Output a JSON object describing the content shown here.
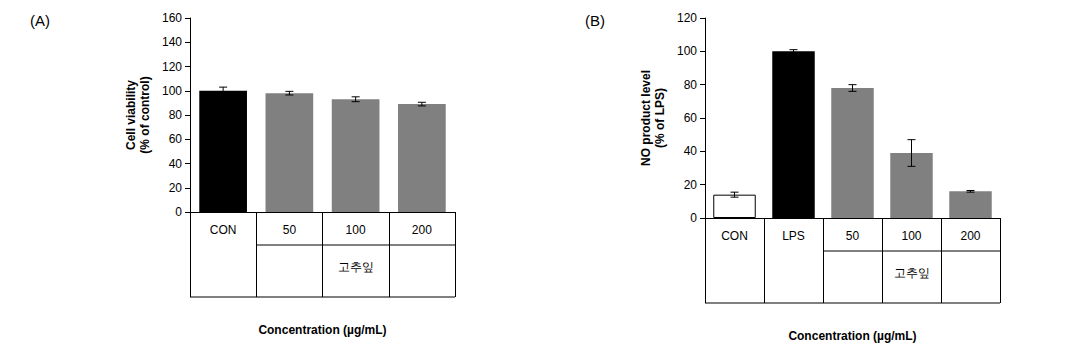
{
  "chart_data": [
    {
      "type": "bar",
      "title": "(A)",
      "y_label": "Cell viability\n(% of control)",
      "x_label": "Concentration (µg/mL)",
      "categories": [
        "CON",
        "50",
        "100",
        "200"
      ],
      "values": [
        100,
        98,
        93,
        89
      ],
      "errors": [
        3,
        1.5,
        2,
        1.5
      ],
      "colors": [
        "#000000",
        "#808080",
        "#808080",
        "#808080"
      ],
      "annotations": [
        {
          "text": "고추잎",
          "categories": [
            "50",
            "100",
            "200"
          ]
        }
      ],
      "ylim": [
        0,
        160
      ],
      "yticks": [
        0,
        20,
        40,
        60,
        80,
        100,
        120,
        140,
        160
      ],
      "grid": false
    },
    {
      "type": "bar",
      "title": "(B)",
      "y_label": "NO product level\n(% of LPS)",
      "x_label": "Concentration (µg/mL)",
      "categories": [
        "CON",
        "LPS",
        "50",
        "100",
        "200"
      ],
      "values": [
        14,
        100,
        78,
        39,
        16
      ],
      "errors": [
        1.5,
        1,
        2,
        8,
        0.5
      ],
      "colors": [
        "#ffffff",
        "#000000",
        "#808080",
        "#808080",
        "#808080"
      ],
      "annotations": [
        {
          "text": "고추잎",
          "categories": [
            "50",
            "100",
            "200"
          ]
        }
      ],
      "ylim": [
        0,
        120
      ],
      "yticks": [
        0,
        20,
        40,
        60,
        80,
        100,
        120
      ],
      "grid": false
    }
  ]
}
